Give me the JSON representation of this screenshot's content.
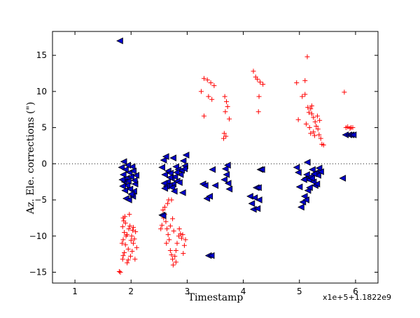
{
  "chart_data": {
    "type": "scatter",
    "xlabel": "Timestamp",
    "ylabel": "Az. Ele. corrections (\")",
    "x_offset_text": "x1e+5+1.1822e9",
    "xlim": [
      0.6,
      6.4
    ],
    "ylim": [
      -16.5,
      18.3
    ],
    "xticks": [
      1,
      2,
      3,
      4,
      5,
      6
    ],
    "yticks": [
      -15,
      -10,
      -5,
      0,
      5,
      10,
      15
    ],
    "reference_line": 0,
    "colors": {
      "red": "#ff0000",
      "blue": "#0000cc"
    },
    "series": [
      {
        "marker": "plus",
        "color": "#ff0000",
        "points": [
          [
            1.79,
            -14.9
          ],
          [
            1.81,
            -15.0
          ],
          [
            1.85,
            -13.2
          ],
          [
            1.86,
            -12.7
          ],
          [
            1.88,
            -12.3
          ],
          [
            1.9,
            -11.2
          ],
          [
            1.84,
            -11.0
          ],
          [
            1.86,
            -10.5
          ],
          [
            1.91,
            -10.0
          ],
          [
            1.88,
            -9.5
          ],
          [
            1.93,
            -9.8
          ],
          [
            1.96,
            -9.0
          ],
          [
            1.98,
            -8.6
          ],
          [
            1.85,
            -8.7
          ],
          [
            1.9,
            -8.2
          ],
          [
            1.87,
            -7.9
          ],
          [
            1.86,
            -7.5
          ],
          [
            1.89,
            -7.3
          ],
          [
            1.93,
            -13.7
          ],
          [
            1.95,
            -13.3
          ],
          [
            1.99,
            -12.8
          ],
          [
            2.02,
            -12.1
          ],
          [
            2.04,
            -11.0
          ],
          [
            2.06,
            -10.4
          ],
          [
            2.01,
            -10.0
          ],
          [
            2.08,
            -9.4
          ],
          [
            2.04,
            -8.8
          ],
          [
            2.07,
            -13.2
          ],
          [
            2.1,
            -11.6
          ],
          [
            1.95,
            -11.8
          ],
          [
            2.0,
            -10.6
          ],
          [
            1.97,
            -7.0
          ],
          [
            2.03,
            -9.2
          ],
          [
            2.53,
            -9.0
          ],
          [
            2.55,
            -8.5
          ],
          [
            2.58,
            -7.5
          ],
          [
            2.6,
            -7.0
          ],
          [
            2.57,
            -6.4
          ],
          [
            2.62,
            -8.0
          ],
          [
            2.64,
            -9.0
          ],
          [
            2.66,
            -9.8
          ],
          [
            2.68,
            -10.5
          ],
          [
            2.63,
            -11.0
          ],
          [
            2.7,
            -12.0
          ],
          [
            2.72,
            -12.6
          ],
          [
            2.74,
            -13.2
          ],
          [
            2.75,
            -14.0
          ],
          [
            2.78,
            -12.8
          ],
          [
            2.8,
            -12.0
          ],
          [
            2.82,
            -11.0
          ],
          [
            2.85,
            -10.0
          ],
          [
            2.88,
            -9.7
          ],
          [
            2.9,
            -10.3
          ],
          [
            2.93,
            -12.4
          ],
          [
            2.95,
            -11.3
          ],
          [
            2.97,
            -10.5
          ],
          [
            2.65,
            -5.5
          ],
          [
            2.67,
            -5.0
          ],
          [
            2.72,
            -5.0
          ],
          [
            2.76,
            -9.3
          ],
          [
            2.7,
            -8.6
          ],
          [
            2.6,
            -6.0
          ],
          [
            2.74,
            -7.6
          ],
          [
            2.86,
            -9.0
          ],
          [
            2.8,
            -13.6
          ],
          [
            2.92,
            -9.8
          ],
          [
            3.25,
            10.0
          ],
          [
            3.3,
            11.8
          ],
          [
            3.36,
            11.6
          ],
          [
            3.42,
            11.2
          ],
          [
            3.48,
            10.8
          ],
          [
            3.38,
            9.3
          ],
          [
            3.44,
            8.9
          ],
          [
            3.3,
            6.6
          ],
          [
            3.67,
            9.3
          ],
          [
            3.7,
            8.6
          ],
          [
            3.72,
            7.9
          ],
          [
            3.68,
            7.2
          ],
          [
            3.75,
            6.2
          ],
          [
            3.66,
            4.2
          ],
          [
            3.69,
            3.8
          ],
          [
            3.65,
            3.5
          ],
          [
            4.18,
            12.8
          ],
          [
            4.22,
            12.0
          ],
          [
            4.25,
            11.7
          ],
          [
            4.3,
            11.3
          ],
          [
            4.35,
            11.0
          ],
          [
            4.28,
            9.3
          ],
          [
            4.27,
            7.2
          ],
          [
            4.95,
            11.2
          ],
          [
            5.14,
            14.8
          ],
          [
            5.05,
            9.3
          ],
          [
            5.1,
            9.6
          ],
          [
            5.15,
            7.8
          ],
          [
            5.17,
            7.1
          ],
          [
            5.2,
            7.6
          ],
          [
            5.22,
            6.9
          ],
          [
            5.25,
            6.4
          ],
          [
            5.28,
            5.8
          ],
          [
            5.3,
            5.2
          ],
          [
            5.33,
            4.8
          ],
          [
            5.2,
            4.2
          ],
          [
            5.25,
            4.4
          ],
          [
            5.35,
            4.0
          ],
          [
            5.38,
            3.5
          ],
          [
            5.4,
            2.7
          ],
          [
            5.43,
            2.6
          ],
          [
            4.98,
            6.1
          ],
          [
            5.12,
            5.5
          ],
          [
            5.18,
            5.0
          ],
          [
            5.32,
            6.6
          ],
          [
            5.36,
            6.0
          ],
          [
            5.27,
            3.9
          ],
          [
            5.22,
            8.0
          ],
          [
            5.1,
            11.5
          ],
          [
            5.8,
            9.9
          ],
          [
            5.83,
            5.0
          ],
          [
            5.9,
            4.9
          ],
          [
            5.86,
            5.1
          ],
          [
            5.92,
            5.0
          ],
          [
            5.95,
            5.0
          ]
        ]
      },
      {
        "marker": "triangle-left",
        "color": "#0000cc",
        "points": [
          [
            1.8,
            17.0
          ],
          [
            1.83,
            -0.5
          ],
          [
            1.87,
            0.3
          ],
          [
            1.9,
            -0.8
          ],
          [
            1.86,
            -1.5
          ],
          [
            1.92,
            -2.0
          ],
          [
            1.88,
            -2.5
          ],
          [
            1.93,
            -3.0
          ],
          [
            1.85,
            -3.1
          ],
          [
            1.95,
            -2.4
          ],
          [
            1.97,
            -1.2
          ],
          [
            2.0,
            -1.8
          ],
          [
            2.02,
            -0.4
          ],
          [
            1.98,
            -3.5
          ],
          [
            2.05,
            -3.8
          ],
          [
            2.03,
            -4.5
          ],
          [
            2.07,
            -2.8
          ],
          [
            2.09,
            -1.6
          ],
          [
            1.91,
            -4.8
          ],
          [
            1.96,
            -5.0
          ],
          [
            2.0,
            -4.2
          ],
          [
            2.04,
            -1.0
          ],
          [
            1.84,
            -2.2
          ],
          [
            1.89,
            -3.7
          ],
          [
            2.06,
            -2.3
          ],
          [
            1.94,
            -0.2
          ],
          [
            2.55,
            -0.5
          ],
          [
            2.58,
            0.5
          ],
          [
            2.62,
            1.0
          ],
          [
            2.6,
            -1.5
          ],
          [
            2.66,
            -1.0
          ],
          [
            2.7,
            -1.3
          ],
          [
            2.72,
            -2.0
          ],
          [
            2.75,
            -2.8
          ],
          [
            2.78,
            -1.8
          ],
          [
            2.8,
            -0.4
          ],
          [
            2.84,
            -0.8
          ],
          [
            2.88,
            -1.5
          ],
          [
            2.9,
            -0.9
          ],
          [
            2.93,
            0.4
          ],
          [
            2.96,
            -0.3
          ],
          [
            2.98,
            1.2
          ],
          [
            2.65,
            -2.5
          ],
          [
            2.68,
            -3.0
          ],
          [
            2.73,
            -3.3
          ],
          [
            2.77,
            -3.8
          ],
          [
            2.82,
            -2.4
          ],
          [
            2.86,
            -2.6
          ],
          [
            2.92,
            -4.0
          ],
          [
            2.59,
            -2.7
          ],
          [
            2.63,
            -3.1
          ],
          [
            2.55,
            -7.1
          ],
          [
            2.57,
            -7.2
          ],
          [
            2.69,
            -1.9
          ],
          [
            2.75,
            0.8
          ],
          [
            2.81,
            -1.2
          ],
          [
            2.95,
            -0.7
          ],
          [
            2.6,
            -3.4
          ],
          [
            3.28,
            -2.8
          ],
          [
            3.32,
            -3.0
          ],
          [
            3.35,
            -4.8
          ],
          [
            3.38,
            -12.7
          ],
          [
            3.43,
            -12.7
          ],
          [
            3.45,
            -0.8
          ],
          [
            3.5,
            -3.0
          ],
          [
            3.4,
            -4.5
          ],
          [
            3.68,
            -0.7
          ],
          [
            3.7,
            -1.5
          ],
          [
            3.73,
            -2.7
          ],
          [
            3.75,
            -3.5
          ],
          [
            3.66,
            -2.2
          ],
          [
            3.72,
            -0.2
          ],
          [
            4.12,
            -4.5
          ],
          [
            4.15,
            -5.5
          ],
          [
            4.18,
            -6.3
          ],
          [
            4.2,
            -4.7
          ],
          [
            4.23,
            -3.3
          ],
          [
            4.25,
            -6.2
          ],
          [
            4.28,
            -5.0
          ],
          [
            4.3,
            -0.8
          ],
          [
            4.33,
            -0.8
          ],
          [
            4.27,
            -3.3
          ],
          [
            4.95,
            -0.5
          ],
          [
            4.98,
            -1.2
          ],
          [
            5.0,
            -3.2
          ],
          [
            5.03,
            -6.0
          ],
          [
            5.06,
            -5.3
          ],
          [
            5.09,
            -4.5
          ],
          [
            5.11,
            -2.0
          ],
          [
            5.13,
            -1.5
          ],
          [
            5.15,
            -3.7
          ],
          [
            5.17,
            -2.2
          ],
          [
            5.2,
            -1.8
          ],
          [
            5.23,
            -0.8
          ],
          [
            5.25,
            -2.5
          ],
          [
            5.28,
            -3.0
          ],
          [
            5.3,
            -1.2
          ],
          [
            5.33,
            -1.6
          ],
          [
            5.35,
            -0.6
          ],
          [
            5.38,
            -1.1
          ],
          [
            5.12,
            -5.0
          ],
          [
            5.18,
            -3.3
          ],
          [
            5.08,
            -2.2
          ],
          [
            5.22,
            -2.0
          ],
          [
            5.26,
            -1.4
          ],
          [
            5.31,
            -2.8
          ],
          [
            5.14,
            0.2
          ],
          [
            5.77,
            -2.0
          ],
          [
            5.82,
            4.0
          ],
          [
            5.88,
            4.0
          ],
          [
            5.92,
            4.0
          ],
          [
            5.96,
            4.0
          ]
        ]
      }
    ]
  }
}
